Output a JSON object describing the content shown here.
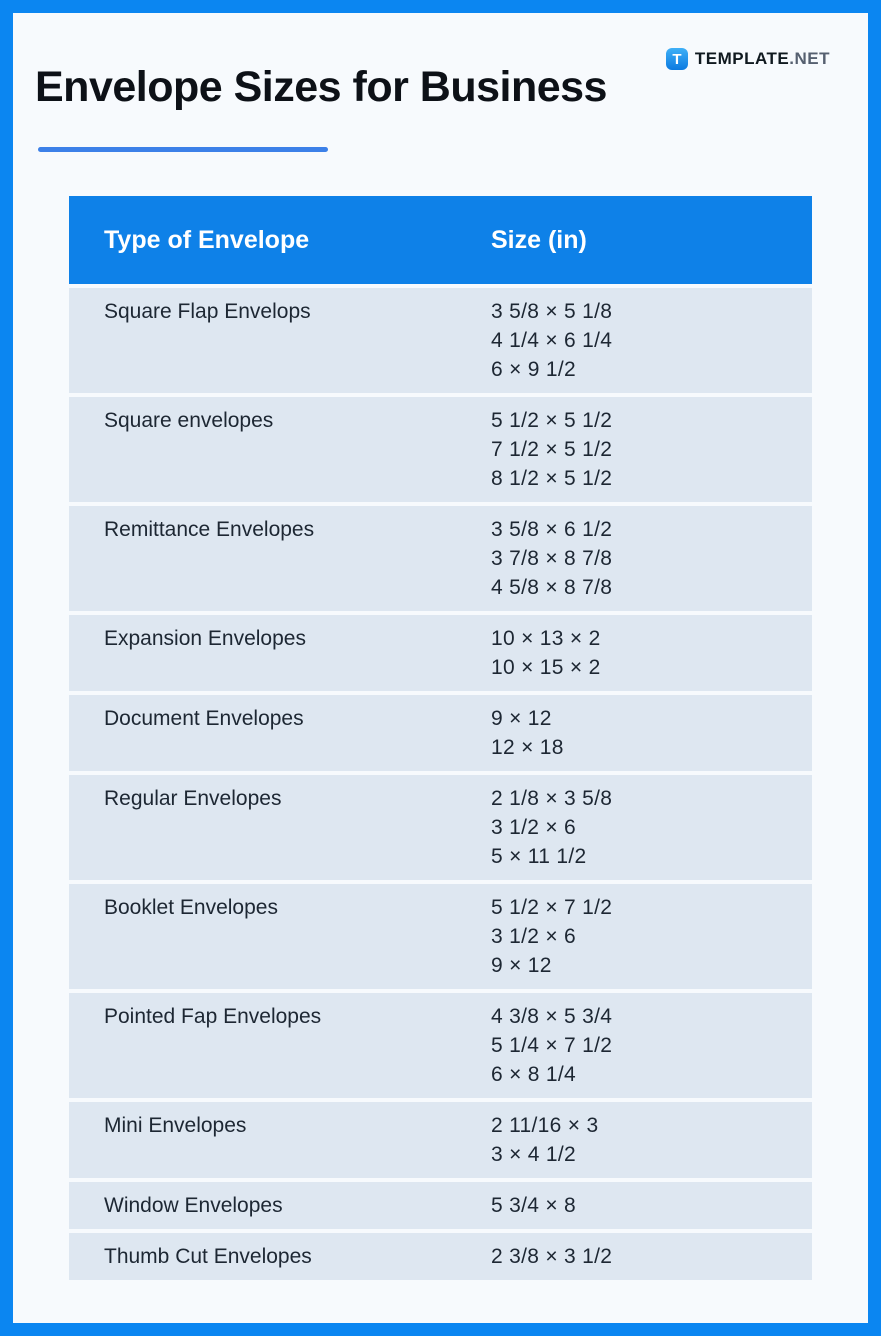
{
  "brand": {
    "badge_letter": "T",
    "name_bold": "TEMPLATE",
    "name_light": ".NET"
  },
  "page": {
    "title": "Envelope Sizes for Business"
  },
  "table": {
    "headers": {
      "type": "Type of Envelope",
      "size": "Size (in)"
    },
    "rows": [
      {
        "type": "Square Flap Envelops",
        "sizes": [
          "3 5/8 × 5 1/8",
          "4 1/4 × 6 1/4",
          "6 × 9 1/2"
        ]
      },
      {
        "type": "Square envelopes",
        "sizes": [
          "5 1/2 × 5 1/2",
          "7 1/2 × 5 1/2",
          "8 1/2 × 5 1/2"
        ]
      },
      {
        "type": "Remittance Envelopes",
        "sizes": [
          "3 5/8 × 6 1/2",
          "3 7/8 × 8 7/8",
          "4 5/8 × 8 7/8"
        ]
      },
      {
        "type": "Expansion Envelopes",
        "sizes": [
          "10 × 13 × 2",
          "10 × 15 × 2"
        ]
      },
      {
        "type": "Document Envelopes",
        "sizes": [
          "9 × 12",
          "12 × 18"
        ]
      },
      {
        "type": "Regular Envelopes",
        "sizes": [
          "2 1/8 × 3 5/8",
          "3 1/2 × 6",
          "5 × 11 1/2"
        ]
      },
      {
        "type": "Booklet Envelopes",
        "sizes": [
          "5 1/2 × 7 1/2",
          "3 1/2 × 6",
          "9 × 12"
        ]
      },
      {
        "type": "Pointed Fap Envelopes",
        "sizes": [
          "4 3/8 × 5 3/4",
          "5 1/4 × 7 1/2",
          "6 × 8 1/4"
        ]
      },
      {
        "type": "Mini Envelopes",
        "sizes": [
          "2 11/16 × 3",
          "3 × 4 1/2"
        ]
      },
      {
        "type": "Window Envelopes",
        "sizes": [
          "5 3/4 × 8"
        ]
      },
      {
        "type": "Thumb Cut Envelopes",
        "sizes": [
          "2 3/8 × 3 1/2"
        ]
      }
    ]
  },
  "colors": {
    "frame_blue": "#0b86f1",
    "header_blue": "#0e81e8",
    "row_bg": "#dee7f1",
    "accent_underline": "#3c80e8",
    "page_bg": "#f7fafd"
  }
}
